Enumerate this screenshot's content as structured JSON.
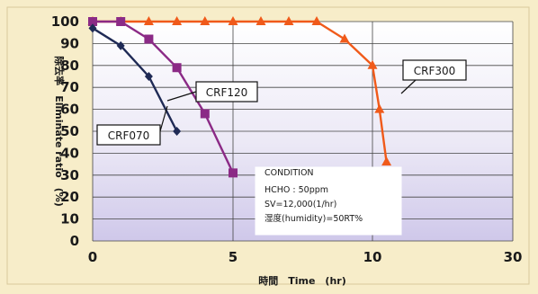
{
  "chart_data": {
    "type": "line",
    "xlabel": "時間　Time　(hr)",
    "ylabel": "除去率　Eliminate ratio　(%)",
    "x_ticks": [
      "0",
      "5",
      "10",
      "30"
    ],
    "y_ticks": [
      "0",
      "10",
      "20",
      "30",
      "40",
      "50",
      "60",
      "70",
      "80",
      "90",
      "100"
    ],
    "ylim": [
      0,
      100
    ],
    "grid": true,
    "series": [
      {
        "name": "CRF070",
        "color": "#1f2a55",
        "marker": "diamond",
        "points": [
          [
            0,
            97
          ],
          [
            1,
            89
          ],
          [
            2,
            75
          ],
          [
            3,
            50
          ]
        ]
      },
      {
        "name": "CRF120",
        "color": "#8b2a86",
        "marker": "square",
        "points": [
          [
            0,
            100
          ],
          [
            1,
            100
          ],
          [
            2,
            92
          ],
          [
            3,
            79
          ],
          [
            4,
            58
          ],
          [
            5,
            31
          ]
        ]
      },
      {
        "name": "CRF300",
        "color": "#f05a1a",
        "marker": "triangle",
        "points": [
          [
            0,
            100
          ],
          [
            1,
            100
          ],
          [
            2,
            100
          ],
          [
            3,
            100
          ],
          [
            4,
            100
          ],
          [
            5,
            100
          ],
          [
            6,
            100
          ],
          [
            7,
            100
          ],
          [
            8,
            100
          ],
          [
            9,
            92
          ],
          [
            10,
            80
          ],
          [
            11,
            60
          ],
          [
            12,
            36
          ]
        ]
      }
    ],
    "condition": {
      "title": "CONDITION",
      "lines": [
        "HCHO : 50ppm",
        "SV=12,000(1/hr)",
        "湿度(humidity)=50RT%"
      ]
    }
  }
}
